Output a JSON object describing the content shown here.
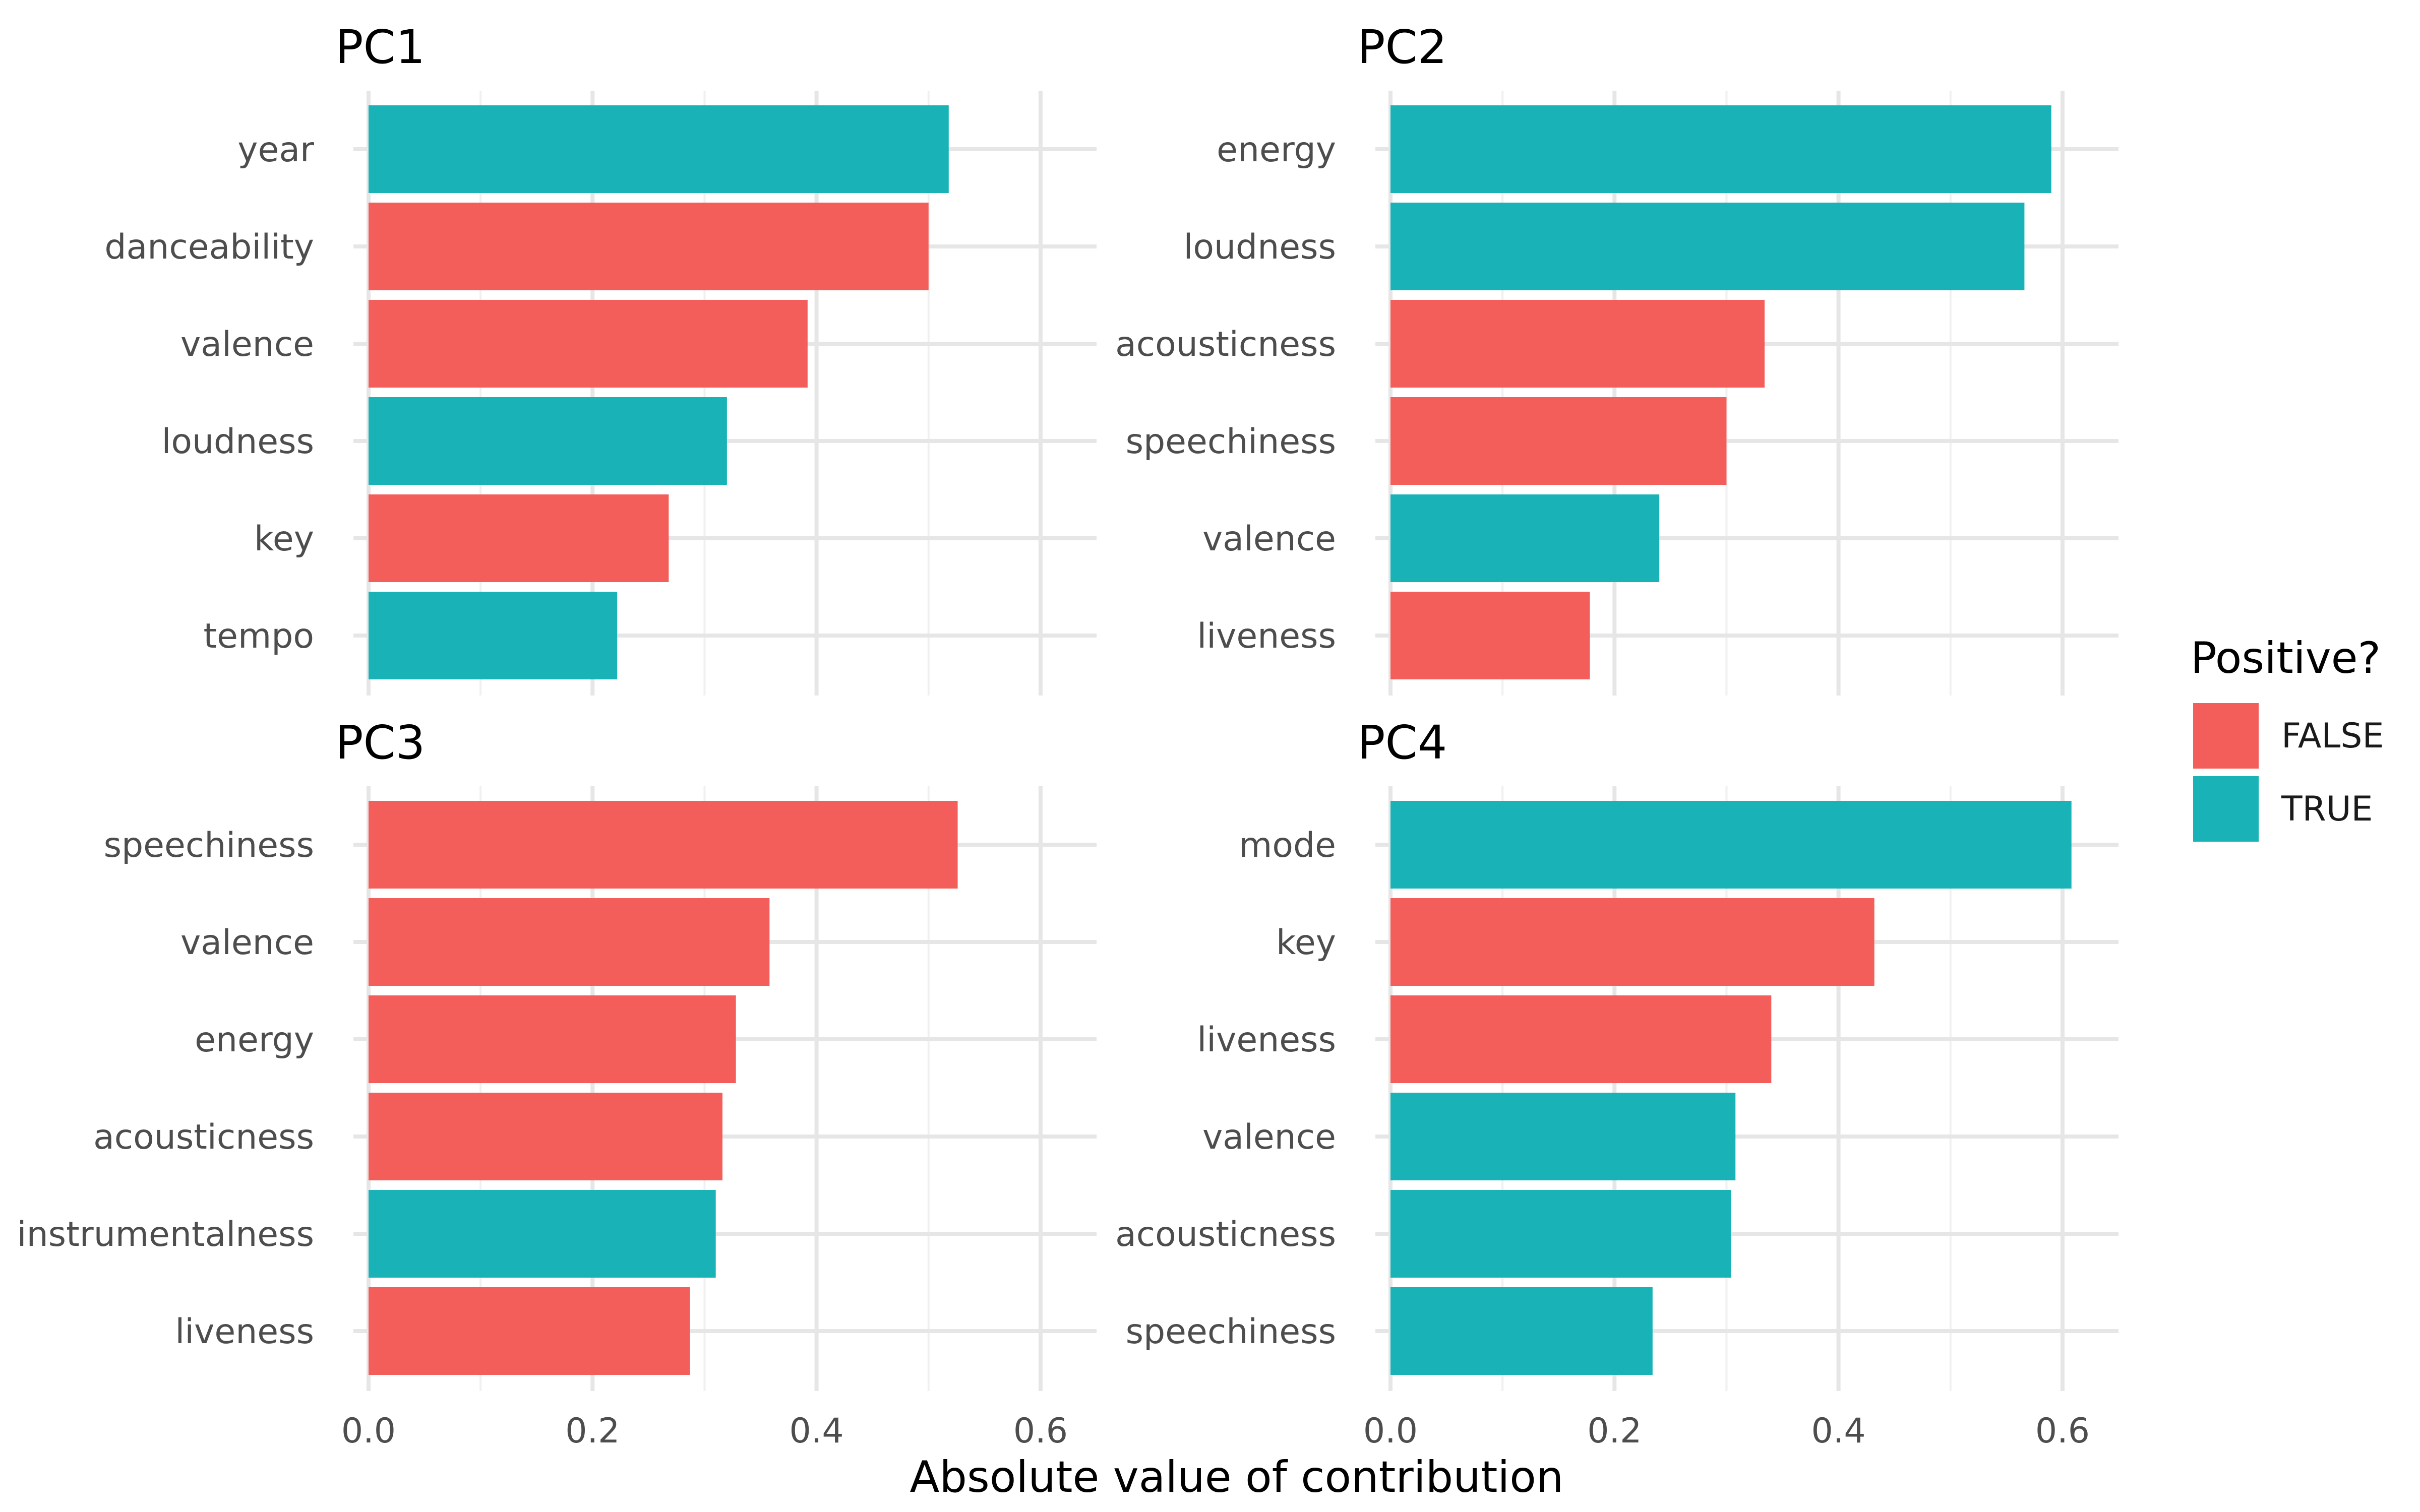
{
  "chart_data": {
    "type": "bar",
    "orientation": "horizontal",
    "xlabel": "Absolute value of contribution",
    "xlim": [
      0,
      0.65
    ],
    "xticks": [
      "0.0",
      "0.2",
      "0.4",
      "0.6"
    ],
    "xtick_values": [
      0,
      0.2,
      0.4,
      0.6
    ],
    "grid": true,
    "legend": {
      "title": "Positive?",
      "placement": "right",
      "entries": [
        {
          "label": "FALSE",
          "key": false
        },
        {
          "label": "TRUE",
          "key": true
        }
      ]
    },
    "colors": {
      "FALSE": "#F35E5A",
      "TRUE": "#19B3B7"
    },
    "panels": [
      {
        "title": "PC1",
        "categories": [
          "year",
          "danceability",
          "valence",
          "loudness",
          "key",
          "tempo"
        ],
        "values": [
          0.518,
          0.5,
          0.392,
          0.32,
          0.268,
          0.222
        ],
        "positive": [
          true,
          false,
          false,
          true,
          false,
          true
        ]
      },
      {
        "title": "PC2",
        "categories": [
          "energy",
          "loudness",
          "acousticness",
          "speechiness",
          "valence",
          "liveness"
        ],
        "values": [
          0.59,
          0.566,
          0.334,
          0.3,
          0.24,
          0.178
        ],
        "positive": [
          true,
          true,
          false,
          false,
          true,
          false
        ]
      },
      {
        "title": "PC3",
        "categories": [
          "speechiness",
          "valence",
          "energy",
          "acousticness",
          "instrumentalness",
          "liveness"
        ],
        "values": [
          0.526,
          0.358,
          0.328,
          0.316,
          0.31,
          0.287
        ],
        "positive": [
          false,
          false,
          false,
          false,
          true,
          false
        ]
      },
      {
        "title": "PC4",
        "categories": [
          "mode",
          "key",
          "liveness",
          "valence",
          "acousticness",
          "speechiness"
        ],
        "values": [
          0.608,
          0.432,
          0.34,
          0.308,
          0.304,
          0.234
        ],
        "positive": [
          true,
          false,
          false,
          true,
          true,
          true
        ]
      }
    ]
  }
}
